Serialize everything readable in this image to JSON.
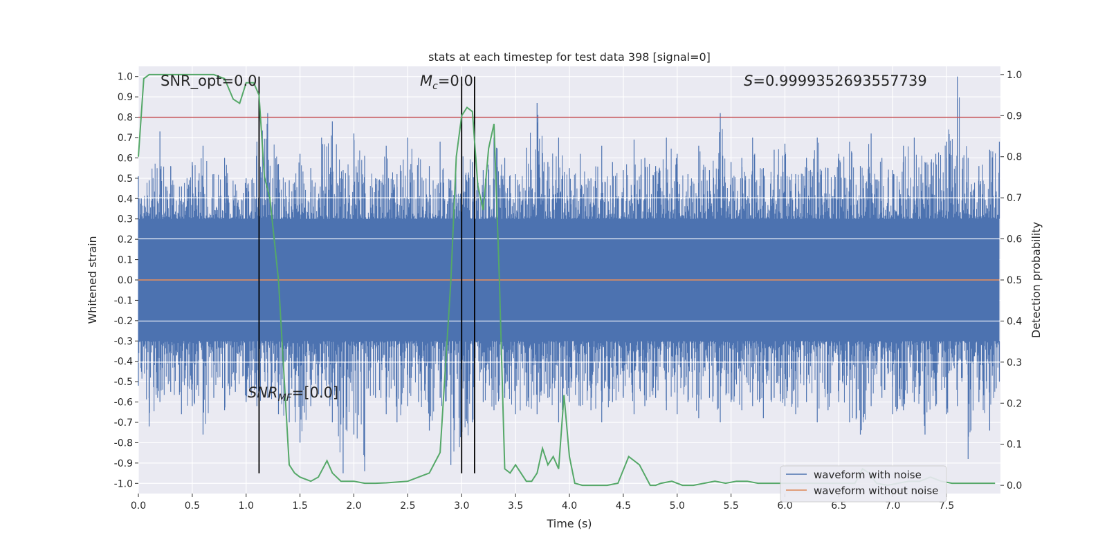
{
  "chart_data": {
    "type": "line",
    "title": "stats at each timestep for test data 398 [signal=0]",
    "xlabel": "Time (s)",
    "ylabel": "Whitened strain",
    "ylabel_right": "Detection probability",
    "xlim": [
      0,
      8.0
    ],
    "ylim": [
      -1.05,
      1.05
    ],
    "ylim_right": [
      -0.02,
      1.02
    ],
    "x_ticks": [
      "0.0",
      "0.5",
      "1.0",
      "1.5",
      "2.0",
      "2.5",
      "3.0",
      "3.5",
      "4.0",
      "4.5",
      "5.0",
      "5.5",
      "6.0",
      "6.5",
      "7.0",
      "7.5"
    ],
    "y_ticks": [
      "1.0",
      "0.9",
      "0.8",
      "0.7",
      "0.6",
      "0.5",
      "0.4",
      "0.3",
      "0.2",
      "0.1",
      "0.0",
      "-0.1",
      "-0.2",
      "-0.3",
      "-0.4",
      "-0.5",
      "-0.6",
      "-0.7",
      "-0.8",
      "-0.9",
      "-1.0"
    ],
    "y_ticks_right": [
      "1.0",
      "0.9",
      "0.8",
      "0.7",
      "0.6",
      "0.5",
      "0.4",
      "0.3",
      "0.2",
      "0.1",
      "0.0"
    ],
    "grid": true,
    "legend_position": "lower-right",
    "annotations": {
      "snr_opt": "SNR_opt=0.0",
      "mc": "M_c=0.0",
      "s": "S=0.9999352693557739",
      "snr_mf": "SNR_MF=[0.0]"
    },
    "threshold_left_axis": 0.8,
    "vertical_lines_x": [
      1.12,
      3.0,
      3.12
    ],
    "series": [
      {
        "name": "waveform with noise",
        "color": "#4c72b0",
        "description_values": "noise envelope",
        "x": [
          0.0,
          0.1,
          0.2,
          0.3,
          0.4,
          0.5,
          0.6,
          0.7,
          0.8,
          0.9,
          1.0,
          1.1,
          1.2,
          1.3,
          1.4,
          1.5,
          1.6,
          1.7,
          1.8,
          1.9,
          2.0,
          2.1,
          2.2,
          2.3,
          2.4,
          2.5,
          2.6,
          2.7,
          2.8,
          2.9,
          3.0,
          3.1,
          3.2,
          3.3,
          3.4,
          3.5,
          3.6,
          3.7,
          3.8,
          3.9,
          4.0,
          4.1,
          4.2,
          4.3,
          4.4,
          4.5,
          4.6,
          4.7,
          4.8,
          4.9,
          5.0,
          5.1,
          5.2,
          5.3,
          5.4,
          5.5,
          5.6,
          5.7,
          5.8,
          5.9,
          6.0,
          6.1,
          6.2,
          6.3,
          6.4,
          6.5,
          6.6,
          6.7,
          6.8,
          6.9,
          7.0,
          7.1,
          7.2,
          7.3,
          7.4,
          7.5,
          7.6,
          7.7,
          7.8,
          7.9,
          7.99
        ],
        "upper": [
          0.51,
          0.49,
          0.73,
          0.56,
          0.46,
          0.58,
          0.66,
          0.52,
          0.6,
          0.47,
          0.5,
          0.68,
          0.82,
          0.57,
          0.49,
          0.62,
          0.55,
          0.7,
          0.78,
          0.54,
          0.72,
          0.61,
          0.5,
          0.66,
          0.52,
          0.7,
          0.6,
          0.56,
          0.68,
          0.49,
          0.64,
          0.58,
          0.54,
          0.7,
          0.6,
          0.52,
          0.65,
          0.87,
          0.58,
          0.7,
          0.55,
          0.62,
          0.5,
          0.66,
          0.58,
          0.54,
          0.69,
          0.6,
          0.56,
          0.7,
          0.62,
          0.52,
          0.66,
          0.54,
          0.82,
          0.58,
          0.6,
          0.7,
          0.55,
          0.64,
          0.67,
          0.52,
          0.6,
          0.7,
          0.55,
          0.62,
          0.68,
          0.56,
          0.72,
          0.6,
          0.54,
          0.66,
          0.7,
          0.58,
          0.62,
          0.68,
          1.0,
          0.6,
          0.56,
          0.64,
          0.68
        ],
        "lower": [
          -0.52,
          -0.72,
          -0.6,
          -0.55,
          -0.66,
          -0.62,
          -0.76,
          -0.58,
          -0.64,
          -0.55,
          -0.6,
          -0.62,
          -0.58,
          -0.66,
          -0.7,
          -0.8,
          -0.62,
          -0.58,
          -0.7,
          -0.95,
          -0.76,
          -0.94,
          -0.58,
          -0.66,
          -0.7,
          -0.62,
          -0.6,
          -0.74,
          -0.58,
          -0.91,
          -0.88,
          -0.7,
          -0.6,
          -0.64,
          -0.58,
          -0.66,
          -0.62,
          -0.66,
          -0.58,
          -0.7,
          -0.6,
          -0.62,
          -0.64,
          -0.7,
          -0.6,
          -0.58,
          -0.66,
          -0.62,
          -0.58,
          -0.64,
          -0.66,
          -0.6,
          -0.68,
          -0.58,
          -0.7,
          -0.6,
          -0.64,
          -0.62,
          -0.68,
          -0.58,
          -0.62,
          -0.66,
          -0.6,
          -0.7,
          -0.64,
          -0.6,
          -0.7,
          -0.76,
          -0.62,
          -0.58,
          -0.66,
          -0.64,
          -0.6,
          -0.76,
          -0.62,
          -0.66,
          -0.62,
          -0.88,
          -0.6,
          -0.74,
          -0.5
        ]
      },
      {
        "name": "waveform without noise",
        "color": "#dd8452",
        "x": [
          0.0,
          7.99
        ],
        "y": [
          0.0,
          0.0
        ]
      },
      {
        "name": "detection probability",
        "color": "#55a868",
        "axis": "right",
        "x": [
          0.0,
          0.05,
          0.1,
          0.2,
          0.3,
          0.4,
          0.5,
          0.6,
          0.7,
          0.8,
          0.88,
          0.94,
          1.0,
          1.07,
          1.12,
          1.17,
          1.22,
          1.3,
          1.4,
          1.45,
          1.5,
          1.6,
          1.67,
          1.75,
          1.8,
          1.88,
          1.95,
          2.0,
          2.1,
          2.2,
          2.3,
          2.4,
          2.5,
          2.6,
          2.7,
          2.8,
          2.9,
          2.95,
          3.0,
          3.05,
          3.1,
          3.15,
          3.2,
          3.25,
          3.3,
          3.35,
          3.4,
          3.45,
          3.5,
          3.55,
          3.6,
          3.65,
          3.7,
          3.75,
          3.8,
          3.85,
          3.9,
          3.95,
          4.0,
          4.05,
          4.12,
          4.18,
          4.25,
          4.35,
          4.45,
          4.55,
          4.65,
          4.75,
          4.8,
          4.85,
          4.95,
          5.05,
          5.15,
          5.25,
          5.35,
          5.45,
          5.55,
          5.65,
          5.75,
          5.85,
          5.95,
          6.05,
          6.15,
          6.25,
          6.35,
          6.45,
          6.55,
          6.65,
          6.72,
          6.78,
          6.85,
          6.95,
          7.05,
          7.15,
          7.25,
          7.35,
          7.45,
          7.55,
          7.65,
          7.75,
          7.85,
          7.95
        ],
        "y": [
          0.8,
          0.99,
          1.0,
          1.0,
          1.0,
          1.0,
          1.0,
          1.0,
          1.0,
          0.99,
          0.94,
          0.93,
          0.98,
          0.98,
          0.95,
          0.75,
          0.7,
          0.5,
          0.05,
          0.03,
          0.02,
          0.01,
          0.02,
          0.06,
          0.03,
          0.01,
          0.01,
          0.01,
          0.005,
          0.005,
          0.006,
          0.008,
          0.01,
          0.02,
          0.03,
          0.08,
          0.5,
          0.8,
          0.9,
          0.92,
          0.91,
          0.73,
          0.67,
          0.82,
          0.88,
          0.5,
          0.04,
          0.03,
          0.05,
          0.03,
          0.01,
          0.01,
          0.03,
          0.09,
          0.05,
          0.07,
          0.04,
          0.22,
          0.07,
          0.005,
          0.0,
          0.0,
          0.0,
          0.0,
          0.005,
          0.07,
          0.05,
          0.0,
          0.0,
          0.005,
          0.01,
          0.0,
          0.0,
          0.005,
          0.01,
          0.005,
          0.01,
          0.01,
          0.005,
          0.005,
          0.005,
          0.005,
          0.005,
          0.005,
          0.005,
          0.005,
          0.005,
          0.005,
          0.04,
          0.03,
          0.005,
          0.0,
          0.005,
          0.01,
          0.01,
          0.02,
          0.01,
          0.005,
          0.005,
          0.005,
          0.005,
          0.005
        ]
      }
    ]
  }
}
